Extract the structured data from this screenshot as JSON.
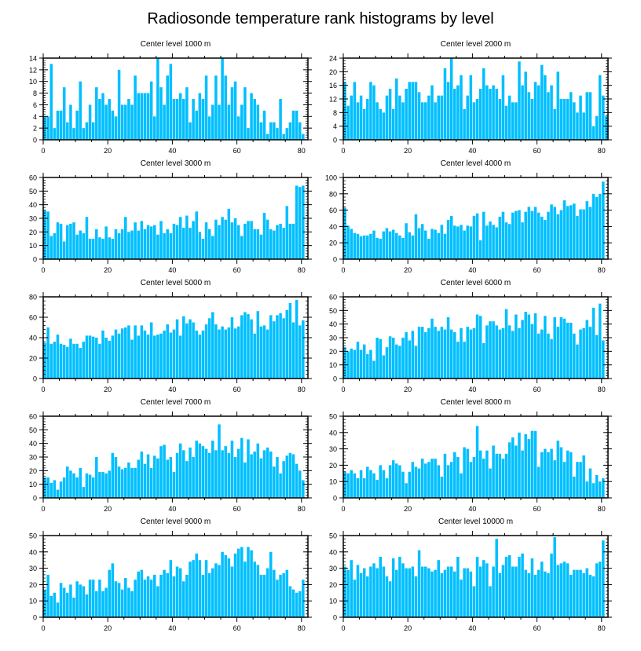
{
  "title": "Radiosonde temperature rank histograms by level",
  "bar_color": "#00BFFF",
  "chart_data": [
    {
      "type": "bar",
      "title": "Center level 1000 m",
      "xlim": [
        0,
        82
      ],
      "ylim": [
        0,
        14
      ],
      "yticks": [
        0,
        2,
        4,
        6,
        8,
        10,
        12,
        14
      ],
      "xticks": [
        0,
        20,
        40,
        60,
        80
      ],
      "values": [
        4,
        4,
        13,
        2,
        5,
        5,
        9,
        3,
        6,
        2,
        5,
        10,
        2,
        3,
        6,
        3,
        9,
        7,
        8,
        6,
        7,
        5,
        4,
        12,
        6,
        6,
        7,
        6,
        11,
        8,
        8,
        8,
        8,
        10,
        4,
        14,
        9,
        6,
        11,
        13,
        7,
        7,
        8,
        7,
        9,
        3,
        7,
        5,
        8,
        7,
        11,
        4,
        6,
        11,
        6,
        14,
        11,
        6,
        9,
        10,
        4,
        6,
        9,
        2,
        8,
        7,
        6,
        3,
        5,
        1,
        3,
        3,
        2,
        7,
        1,
        2,
        3,
        5,
        5,
        3,
        1
      ]
    },
    {
      "type": "bar",
      "title": "Center level 2000 m",
      "xlim": [
        0,
        82
      ],
      "ylim": [
        0,
        24
      ],
      "yticks": [
        0,
        4,
        8,
        12,
        16,
        20,
        24
      ],
      "xticks": [
        0,
        20,
        40,
        60,
        80
      ],
      "values": [
        17,
        10,
        13,
        17,
        11,
        13,
        9,
        12,
        17,
        16,
        11,
        9,
        8,
        13,
        15,
        9,
        18,
        13,
        11,
        15,
        17,
        17,
        17,
        14,
        11,
        11,
        13,
        16,
        11,
        13,
        13,
        21,
        17,
        24,
        15,
        16,
        19,
        9,
        13,
        19,
        11,
        12,
        15,
        21,
        16,
        15,
        16,
        15,
        12,
        19,
        10,
        13,
        11,
        11,
        23,
        16,
        20,
        14,
        12,
        17,
        16,
        22,
        19,
        14,
        16,
        9,
        20,
        12,
        12,
        12,
        14,
        11,
        8,
        13,
        8,
        14,
        14,
        4,
        7,
        19,
        13,
        7
      ]
    },
    {
      "type": "bar",
      "title": "Center level 3000 m",
      "xlim": [
        0,
        82
      ],
      "ylim": [
        0,
        60
      ],
      "yticks": [
        0,
        10,
        20,
        30,
        40,
        50,
        60
      ],
      "xticks": [
        0,
        20,
        40,
        60,
        80
      ],
      "values": [
        36,
        35,
        17,
        19,
        27,
        26,
        13,
        25,
        26,
        27,
        18,
        21,
        19,
        31,
        15,
        15,
        22,
        16,
        15,
        24,
        16,
        15,
        22,
        19,
        22,
        31,
        20,
        21,
        27,
        21,
        28,
        22,
        25,
        24,
        25,
        18,
        28,
        19,
        22,
        19,
        26,
        25,
        31,
        23,
        32,
        23,
        28,
        35,
        20,
        15,
        27,
        22,
        17,
        29,
        25,
        31,
        29,
        37,
        27,
        30,
        25,
        17,
        26,
        28,
        28,
        22,
        22,
        18,
        34,
        29,
        22,
        21,
        25,
        26,
        23,
        39,
        26,
        26,
        54,
        53,
        54
      ]
    },
    {
      "type": "bar",
      "title": "Center level 4000 m",
      "xlim": [
        0,
        82
      ],
      "ylim": [
        0,
        100
      ],
      "yticks": [
        0,
        20,
        40,
        60,
        80,
        100
      ],
      "xticks": [
        0,
        20,
        40,
        60,
        80
      ],
      "values": [
        63,
        41,
        37,
        32,
        31,
        28,
        29,
        29,
        31,
        35,
        26,
        25,
        34,
        38,
        34,
        36,
        32,
        29,
        26,
        44,
        33,
        29,
        55,
        38,
        43,
        35,
        25,
        37,
        36,
        32,
        42,
        31,
        48,
        53,
        41,
        40,
        42,
        35,
        41,
        40,
        53,
        56,
        23,
        58,
        41,
        46,
        42,
        39,
        52,
        58,
        45,
        43,
        57,
        59,
        60,
        45,
        58,
        64,
        59,
        64,
        57,
        52,
        48,
        58,
        67,
        64,
        55,
        60,
        72,
        65,
        66,
        68,
        53,
        61,
        61,
        71,
        64,
        80,
        76,
        80,
        95
      ]
    },
    {
      "type": "bar",
      "title": "Center level 5000 m",
      "xlim": [
        0,
        82
      ],
      "ylim": [
        0,
        80
      ],
      "yticks": [
        0,
        20,
        40,
        60,
        80
      ],
      "xticks": [
        0,
        20,
        40,
        60,
        80
      ],
      "values": [
        35,
        50,
        34,
        36,
        43,
        34,
        33,
        31,
        39,
        34,
        34,
        30,
        36,
        42,
        42,
        41,
        40,
        34,
        47,
        40,
        37,
        42,
        48,
        44,
        49,
        50,
        52,
        38,
        52,
        42,
        52,
        47,
        43,
        55,
        42,
        43,
        44,
        47,
        53,
        45,
        48,
        58,
        42,
        61,
        54,
        58,
        55,
        47,
        43,
        47,
        53,
        59,
        65,
        53,
        48,
        51,
        48,
        50,
        60,
        49,
        51,
        62,
        65,
        63,
        58,
        44,
        66,
        51,
        52,
        48,
        62,
        56,
        62,
        64,
        59,
        67,
        74,
        55,
        77,
        52,
        57
      ]
    },
    {
      "type": "bar",
      "title": "Center level 6000 m",
      "xlim": [
        0,
        82
      ],
      "ylim": [
        0,
        60
      ],
      "yticks": [
        0,
        10,
        20,
        30,
        40,
        50,
        60
      ],
      "xticks": [
        0,
        20,
        40,
        60,
        80
      ],
      "values": [
        23,
        20,
        22,
        21,
        27,
        21,
        25,
        18,
        21,
        13,
        30,
        29,
        17,
        23,
        31,
        30,
        25,
        24,
        30,
        34,
        28,
        35,
        24,
        38,
        38,
        34,
        37,
        44,
        38,
        35,
        38,
        36,
        45,
        36,
        34,
        27,
        37,
        27,
        38,
        36,
        37,
        47,
        46,
        26,
        39,
        42,
        42,
        39,
        36,
        37,
        51,
        39,
        35,
        47,
        37,
        43,
        49,
        47,
        40,
        48,
        33,
        36,
        46,
        33,
        29,
        45,
        38,
        45,
        44,
        41,
        41,
        33,
        25,
        36,
        37,
        43,
        38,
        52,
        32,
        55,
        28
      ]
    },
    {
      "type": "bar",
      "title": "Center level 7000 m",
      "xlim": [
        0,
        82
      ],
      "ylim": [
        0,
        60
      ],
      "yticks": [
        0,
        10,
        20,
        30,
        40,
        50,
        60
      ],
      "xticks": [
        0,
        20,
        40,
        60,
        80
      ],
      "values": [
        15,
        15,
        11,
        13,
        6,
        12,
        15,
        23,
        20,
        18,
        15,
        22,
        8,
        18,
        17,
        15,
        30,
        19,
        19,
        18,
        20,
        33,
        30,
        23,
        21,
        22,
        26,
        22,
        22,
        28,
        34,
        25,
        32,
        22,
        31,
        29,
        38,
        39,
        28,
        30,
        19,
        33,
        40,
        35,
        27,
        37,
        30,
        42,
        40,
        38,
        36,
        33,
        42,
        35,
        54,
        35,
        38,
        33,
        42,
        30,
        36,
        44,
        26,
        43,
        32,
        34,
        40,
        29,
        35,
        37,
        34,
        23,
        30,
        18,
        27,
        31,
        33,
        32,
        25,
        20,
        13
      ]
    },
    {
      "type": "bar",
      "title": "Center level 8000 m",
      "xlim": [
        0,
        82
      ],
      "ylim": [
        0,
        50
      ],
      "yticks": [
        0,
        10,
        20,
        30,
        40,
        50
      ],
      "xticks": [
        0,
        20,
        40,
        60,
        80
      ],
      "values": [
        16,
        15,
        17,
        15,
        12,
        17,
        12,
        19,
        17,
        15,
        11,
        20,
        17,
        12,
        20,
        23,
        21,
        20,
        16,
        9,
        16,
        22,
        19,
        18,
        24,
        21,
        22,
        24,
        24,
        20,
        13,
        27,
        20,
        22,
        28,
        25,
        15,
        31,
        30,
        22,
        25,
        44,
        29,
        24,
        29,
        18,
        32,
        27,
        27,
        24,
        27,
        34,
        37,
        32,
        40,
        29,
        39,
        36,
        41,
        41,
        19,
        28,
        30,
        28,
        30,
        23,
        35,
        31,
        22,
        29,
        28,
        13,
        22,
        22,
        26,
        10,
        18,
        9,
        14,
        10,
        12
      ]
    },
    {
      "type": "bar",
      "title": "Center level 9000 m",
      "xlim": [
        0,
        82
      ],
      "ylim": [
        0,
        50
      ],
      "yticks": [
        0,
        10,
        20,
        30,
        40,
        50
      ],
      "xticks": [
        0,
        20,
        40,
        60,
        80
      ],
      "values": [
        17,
        26,
        13,
        15,
        9,
        21,
        18,
        15,
        20,
        12,
        22,
        20,
        19,
        14,
        23,
        23,
        16,
        23,
        16,
        18,
        29,
        33,
        22,
        21,
        17,
        24,
        18,
        16,
        23,
        28,
        29,
        23,
        25,
        23,
        26,
        19,
        26,
        29,
        27,
        35,
        25,
        31,
        30,
        22,
        26,
        34,
        35,
        39,
        35,
        26,
        35,
        27,
        30,
        33,
        32,
        40,
        38,
        36,
        31,
        39,
        42,
        43,
        34,
        43,
        41,
        34,
        32,
        26,
        26,
        30,
        40,
        29,
        23,
        26,
        27,
        29,
        19,
        17,
        15,
        16,
        23
      ]
    },
    {
      "type": "bar",
      "title": "Center level 10000 m",
      "xlim": [
        0,
        82
      ],
      "ylim": [
        0,
        50
      ],
      "yticks": [
        0,
        10,
        20,
        30,
        40,
        50
      ],
      "xticks": [
        0,
        20,
        40,
        60,
        80
      ],
      "values": [
        31,
        29,
        35,
        23,
        32,
        27,
        30,
        25,
        31,
        33,
        30,
        37,
        31,
        25,
        22,
        36,
        29,
        37,
        33,
        30,
        30,
        31,
        25,
        41,
        31,
        31,
        30,
        28,
        29,
        35,
        27,
        29,
        31,
        31,
        28,
        37,
        23,
        30,
        30,
        28,
        19,
        37,
        31,
        35,
        33,
        19,
        31,
        48,
        27,
        32,
        37,
        38,
        31,
        31,
        37,
        39,
        29,
        27,
        36,
        26,
        29,
        34,
        28,
        27,
        39,
        49,
        32,
        33,
        34,
        33,
        26,
        29,
        29,
        29,
        27,
        30,
        26,
        25,
        33,
        34,
        47
      ]
    }
  ]
}
